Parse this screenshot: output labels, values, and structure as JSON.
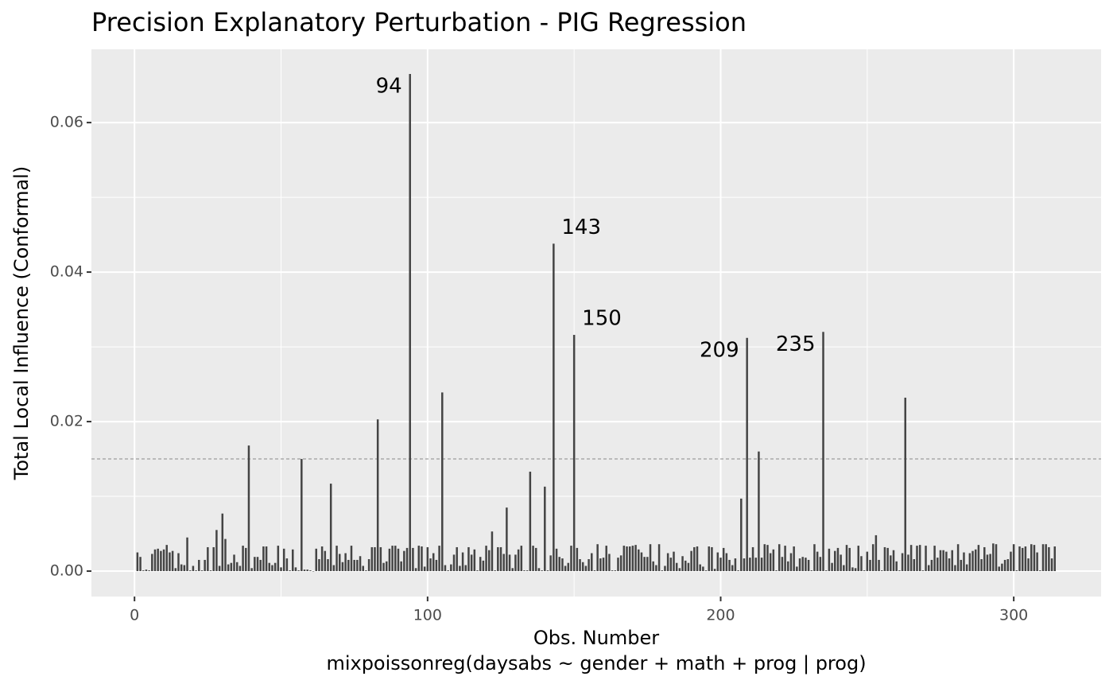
{
  "chart_data": {
    "type": "bar",
    "title": "Precision Explanatory Perturbation - PIG Regression",
    "xlabel": [
      "Obs. Number",
      "mixpoissonreg(daysabs ~ gender + math + prog | prog)"
    ],
    "ylabel": "Total Local Influence (Conformal)",
    "color": "#444444",
    "threshold": 0.015,
    "xlim": [
      -14.7,
      329.8
    ],
    "ylim": [
      -0.0034,
      0.0698
    ],
    "xticks": [
      0,
      100,
      200,
      300
    ],
    "xminor": [
      50,
      150,
      250
    ],
    "yticks": [
      {
        "value": 0,
        "label": "0.00"
      },
      0.02,
      0.04,
      0.06
    ],
    "yminor": [
      0.01,
      0.03,
      0.05
    ],
    "grid": true,
    "annotations": [
      {
        "text": "94",
        "x": 94,
        "side": "left"
      },
      {
        "text": "143",
        "x": 143,
        "side": "right"
      },
      {
        "text": "150",
        "x": 150,
        "side": "right"
      },
      {
        "text": "209",
        "x": 209,
        "side": "left"
      },
      {
        "text": "235",
        "x": 235,
        "side": "left"
      }
    ],
    "x": [
      1,
      2,
      3,
      4,
      5,
      6,
      7,
      8,
      9,
      10,
      11,
      12,
      13,
      14,
      15,
      16,
      17,
      18,
      19,
      20,
      21,
      22,
      23,
      24,
      25,
      26,
      27,
      28,
      29,
      30,
      31,
      32,
      33,
      34,
      35,
      36,
      37,
      38,
      39,
      40,
      41,
      42,
      43,
      44,
      45,
      46,
      47,
      48,
      49,
      50,
      51,
      52,
      53,
      54,
      55,
      56,
      57,
      58,
      59,
      60,
      61,
      62,
      63,
      64,
      65,
      66,
      67,
      68,
      69,
      70,
      71,
      72,
      73,
      74,
      75,
      76,
      77,
      78,
      79,
      80,
      81,
      82,
      83,
      84,
      85,
      86,
      87,
      88,
      89,
      90,
      91,
      92,
      93,
      94,
      95,
      96,
      97,
      98,
      99,
      100,
      101,
      102,
      103,
      104,
      105,
      106,
      107,
      108,
      109,
      110,
      111,
      112,
      113,
      114,
      115,
      116,
      117,
      118,
      119,
      120,
      121,
      122,
      123,
      124,
      125,
      126,
      127,
      128,
      129,
      130,
      131,
      132,
      133,
      134,
      135,
      136,
      137,
      138,
      139,
      140,
      141,
      142,
      143,
      144,
      145,
      146,
      147,
      148,
      149,
      150,
      151,
      152,
      153,
      154,
      155,
      156,
      157,
      158,
      159,
      160,
      161,
      162,
      163,
      164,
      165,
      166,
      167,
      168,
      169,
      170,
      171,
      172,
      173,
      174,
      175,
      176,
      177,
      178,
      179,
      180,
      181,
      182,
      183,
      184,
      185,
      186,
      187,
      188,
      189,
      190,
      191,
      192,
      193,
      194,
      195,
      196,
      197,
      198,
      199,
      200,
      201,
      202,
      203,
      204,
      205,
      206,
      207,
      208,
      209,
      210,
      211,
      212,
      213,
      214,
      215,
      216,
      217,
      218,
      219,
      220,
      221,
      222,
      223,
      224,
      225,
      226,
      227,
      228,
      229,
      230,
      231,
      232,
      233,
      234,
      235,
      236,
      237,
      238,
      239,
      240,
      241,
      242,
      243,
      244,
      245,
      246,
      247,
      248,
      249,
      250,
      251,
      252,
      253,
      254,
      255,
      256,
      257,
      258,
      259,
      260,
      261,
      262,
      263,
      264,
      265,
      266,
      267,
      268,
      269,
      270,
      271,
      272,
      273,
      274,
      275,
      276,
      277,
      278,
      279,
      280,
      281,
      282,
      283,
      284,
      285,
      286,
      287,
      288,
      289,
      290,
      291,
      292,
      293,
      294,
      295,
      296,
      297,
      298,
      299,
      300,
      301,
      302,
      303,
      304,
      305,
      306,
      307,
      308,
      309,
      310,
      311,
      312,
      313,
      314
    ],
    "values": [
      0.0025,
      0.0019,
      0.0001,
      0.0002,
      0.0001,
      0.0023,
      0.0029,
      0.003,
      0.0027,
      0.0029,
      0.0035,
      0.0025,
      0.0027,
      0.0004,
      0.0024,
      0.0009,
      0.0008,
      0.0045,
      0.0001,
      0.0007,
      0.0001,
      0.0015,
      0.0001,
      0.0015,
      0.0032,
      0.0001,
      0.0032,
      0.0055,
      0.0007,
      0.0077,
      0.0043,
      0.0009,
      0.0011,
      0.0022,
      0.0012,
      0.0007,
      0.0034,
      0.0031,
      0.0168,
      0.0004,
      0.0019,
      0.0019,
      0.0015,
      0.0033,
      0.0033,
      0.0011,
      0.0008,
      0.0011,
      0.0034,
      0.0005,
      0.003,
      0.0017,
      0.0001,
      0.0029,
      0.0005,
      0.0001,
      0.015,
      0.0002,
      0.0002,
      0.0001,
      0.0,
      0.003,
      0.0016,
      0.0033,
      0.0027,
      0.0016,
      0.0117,
      0.0008,
      0.0034,
      0.0023,
      0.0012,
      0.0024,
      0.0015,
      0.0034,
      0.0015,
      0.0015,
      0.002,
      0.0007,
      0.0001,
      0.0016,
      0.0032,
      0.0032,
      0.0203,
      0.0032,
      0.0011,
      0.0013,
      0.003,
      0.0034,
      0.0034,
      0.003,
      0.0013,
      0.0027,
      0.0031,
      0.0665,
      0.0031,
      0.0004,
      0.0034,
      0.0033,
      0.0006,
      0.0032,
      0.0017,
      0.0024,
      0.0015,
      0.0034,
      0.0239,
      0.0008,
      0.0001,
      0.0009,
      0.0022,
      0.0032,
      0.0007,
      0.0025,
      0.0008,
      0.0032,
      0.0022,
      0.0029,
      0.0001,
      0.0019,
      0.0014,
      0.0034,
      0.0028,
      0.0053,
      0.0001,
      0.0032,
      0.0032,
      0.0023,
      0.0085,
      0.0022,
      0.0004,
      0.0022,
      0.0029,
      0.0034,
      0.0001,
      0.0001,
      0.0133,
      0.0034,
      0.0031,
      0.0004,
      0.0001,
      0.0113,
      0.0001,
      0.0021,
      0.0438,
      0.003,
      0.0019,
      0.0017,
      0.0007,
      0.0011,
      0.0034,
      0.0316,
      0.0031,
      0.0016,
      0.0012,
      0.0007,
      0.0016,
      0.0024,
      0.0001,
      0.0036,
      0.0017,
      0.0018,
      0.0034,
      0.0023,
      0.0001,
      0.0001,
      0.0018,
      0.0021,
      0.0034,
      0.0033,
      0.0033,
      0.0034,
      0.0035,
      0.0029,
      0.0025,
      0.0019,
      0.0019,
      0.0036,
      0.0013,
      0.0008,
      0.0036,
      0.0001,
      0.0007,
      0.0024,
      0.0018,
      0.0026,
      0.0011,
      0.0004,
      0.002,
      0.0014,
      0.0011,
      0.0027,
      0.0032,
      0.0033,
      0.0009,
      0.0006,
      0.0001,
      0.0033,
      0.0032,
      0.0003,
      0.0025,
      0.0018,
      0.0031,
      0.0024,
      0.0015,
      0.0008,
      0.0017,
      0.0001,
      0.0097,
      0.0017,
      0.0312,
      0.0018,
      0.0032,
      0.0018,
      0.016,
      0.0018,
      0.0036,
      0.0035,
      0.0024,
      0.0029,
      0.0001,
      0.0036,
      0.0019,
      0.0034,
      0.0013,
      0.0024,
      0.0033,
      0.0006,
      0.0017,
      0.0019,
      0.0018,
      0.0015,
      0.0001,
      0.0036,
      0.0026,
      0.0019,
      0.032,
      0.0001,
      0.003,
      0.0011,
      0.0027,
      0.0031,
      0.0022,
      0.0008,
      0.0035,
      0.0031,
      0.0005,
      0.0004,
      0.0034,
      0.002,
      0.0001,
      0.0026,
      0.0015,
      0.0036,
      0.0048,
      0.0015,
      0.0001,
      0.0032,
      0.0031,
      0.0021,
      0.0028,
      0.0013,
      0.0001,
      0.0024,
      0.0232,
      0.0022,
      0.0035,
      0.0016,
      0.0034,
      0.0035,
      0.0001,
      0.0034,
      0.0008,
      0.0015,
      0.0034,
      0.0018,
      0.0028,
      0.0028,
      0.0026,
      0.0017,
      0.0028,
      0.0008,
      0.0036,
      0.0015,
      0.0025,
      0.0009,
      0.0024,
      0.0027,
      0.0029,
      0.0035,
      0.0016,
      0.0032,
      0.0022,
      0.0023,
      0.0037,
      0.0036,
      0.0006,
      0.001,
      0.0015,
      0.0016,
      0.0026,
      0.0036,
      0.0001,
      0.0033,
      0.0031,
      0.0033,
      0.0017,
      0.0036,
      0.0035,
      0.0025,
      0.0001,
      0.0036,
      0.0036,
      0.0032,
      0.0017,
      0.0033
    ]
  }
}
